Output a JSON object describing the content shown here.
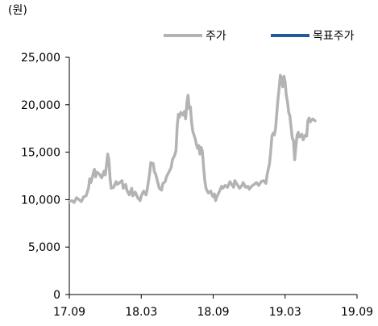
{
  "chart_data": {
    "type": "line",
    "unit_label": "(원)",
    "ylim": [
      0,
      25000
    ],
    "y_ticks": [
      0,
      5000,
      10000,
      15000,
      20000,
      25000
    ],
    "y_tick_labels": [
      "0",
      "5,000",
      "10,000",
      "15,000",
      "20,000",
      "25,000"
    ],
    "x_ticks": [
      "17.09",
      "18.03",
      "18.09",
      "19.03",
      "19.09"
    ],
    "legend_placement": "top-right",
    "grid": false,
    "series": [
      {
        "name": "주가",
        "color": "#b3b3b3",
        "x_unit": "months since 17.09",
        "points": [
          [
            0.0,
            9800
          ],
          [
            0.2,
            9900
          ],
          [
            0.4,
            9700
          ],
          [
            0.6,
            10200
          ],
          [
            0.8,
            10000
          ],
          [
            1.0,
            9800
          ],
          [
            1.2,
            10300
          ],
          [
            1.4,
            10400
          ],
          [
            1.6,
            11200
          ],
          [
            1.7,
            12200
          ],
          [
            1.8,
            11800
          ],
          [
            2.0,
            12800
          ],
          [
            2.1,
            13200
          ],
          [
            2.2,
            12400
          ],
          [
            2.3,
            12900
          ],
          [
            2.5,
            12700
          ],
          [
            2.7,
            12300
          ],
          [
            2.9,
            13000
          ],
          [
            3.0,
            12600
          ],
          [
            3.1,
            13600
          ],
          [
            3.2,
            14800
          ],
          [
            3.3,
            14200
          ],
          [
            3.4,
            12200
          ],
          [
            3.5,
            11200
          ],
          [
            3.7,
            11300
          ],
          [
            3.9,
            11900
          ],
          [
            4.0,
            11600
          ],
          [
            4.2,
            11800
          ],
          [
            4.4,
            12000
          ],
          [
            4.5,
            11200
          ],
          [
            4.7,
            11600
          ],
          [
            4.8,
            11000
          ],
          [
            5.0,
            10500
          ],
          [
            5.2,
            11200
          ],
          [
            5.3,
            10400
          ],
          [
            5.5,
            10800
          ],
          [
            5.7,
            10200
          ],
          [
            5.9,
            9900
          ],
          [
            6.0,
            10400
          ],
          [
            6.2,
            10900
          ],
          [
            6.4,
            10500
          ],
          [
            6.5,
            11100
          ],
          [
            6.7,
            12800
          ],
          [
            6.8,
            13900
          ],
          [
            7.0,
            13800
          ],
          [
            7.1,
            12900
          ],
          [
            7.2,
            12700
          ],
          [
            7.4,
            11700
          ],
          [
            7.5,
            11200
          ],
          [
            7.7,
            11000
          ],
          [
            7.8,
            11700
          ],
          [
            8.0,
            11900
          ],
          [
            8.1,
            12400
          ],
          [
            8.3,
            12900
          ],
          [
            8.5,
            13400
          ],
          [
            8.6,
            14200
          ],
          [
            8.8,
            14700
          ],
          [
            8.9,
            15200
          ],
          [
            9.0,
            17800
          ],
          [
            9.1,
            19000
          ],
          [
            9.2,
            18700
          ],
          [
            9.3,
            19200
          ],
          [
            9.5,
            18900
          ],
          [
            9.6,
            19300
          ],
          [
            9.7,
            18500
          ],
          [
            9.8,
            20100
          ],
          [
            9.9,
            21000
          ],
          [
            10.0,
            19600
          ],
          [
            10.1,
            19800
          ],
          [
            10.2,
            18200
          ],
          [
            10.3,
            17200
          ],
          [
            10.4,
            16800
          ],
          [
            10.5,
            16400
          ],
          [
            10.6,
            15800
          ],
          [
            10.7,
            15400
          ],
          [
            10.8,
            15700
          ],
          [
            10.9,
            14800
          ],
          [
            11.0,
            15500
          ],
          [
            11.1,
            15100
          ],
          [
            11.2,
            13400
          ],
          [
            11.3,
            12000
          ],
          [
            11.4,
            11200
          ],
          [
            11.5,
            10900
          ],
          [
            11.6,
            10700
          ],
          [
            11.8,
            10900
          ],
          [
            11.9,
            10500
          ],
          [
            12.0,
            10300
          ],
          [
            12.1,
            10600
          ],
          [
            12.2,
            9900
          ],
          [
            12.3,
            10300
          ],
          [
            12.5,
            10800
          ],
          [
            12.7,
            11400
          ],
          [
            12.8,
            11200
          ],
          [
            13.0,
            11500
          ],
          [
            13.2,
            11300
          ],
          [
            13.4,
            11900
          ],
          [
            13.5,
            11700
          ],
          [
            13.7,
            11300
          ],
          [
            13.8,
            12000
          ],
          [
            14.0,
            11600
          ],
          [
            14.2,
            11200
          ],
          [
            14.4,
            11500
          ],
          [
            14.5,
            11800
          ],
          [
            14.7,
            11300
          ],
          [
            14.9,
            11400
          ],
          [
            15.0,
            11100
          ],
          [
            15.2,
            11400
          ],
          [
            15.4,
            11600
          ],
          [
            15.6,
            11800
          ],
          [
            15.8,
            11500
          ],
          [
            16.0,
            11900
          ],
          [
            16.2,
            12000
          ],
          [
            16.4,
            11700
          ],
          [
            16.5,
            12600
          ],
          [
            16.7,
            13800
          ],
          [
            16.8,
            15100
          ],
          [
            16.9,
            16700
          ],
          [
            17.0,
            17000
          ],
          [
            17.1,
            16800
          ],
          [
            17.2,
            17500
          ],
          [
            17.3,
            19000
          ],
          [
            17.4,
            20500
          ],
          [
            17.5,
            21700
          ],
          [
            17.6,
            23100
          ],
          [
            17.7,
            22800
          ],
          [
            17.8,
            21900
          ],
          [
            17.9,
            23000
          ],
          [
            18.0,
            22400
          ],
          [
            18.1,
            21000
          ],
          [
            18.2,
            20300
          ],
          [
            18.3,
            19200
          ],
          [
            18.4,
            18800
          ],
          [
            18.5,
            17600
          ],
          [
            18.6,
            16500
          ],
          [
            18.7,
            16200
          ],
          [
            18.8,
            14200
          ],
          [
            18.9,
            15600
          ],
          [
            19.0,
            16800
          ],
          [
            19.1,
            17100
          ],
          [
            19.2,
            16600
          ],
          [
            19.3,
            16700
          ],
          [
            19.4,
            16900
          ],
          [
            19.5,
            16300
          ],
          [
            19.6,
            16600
          ],
          [
            19.7,
            16800
          ],
          [
            19.8,
            16700
          ],
          [
            19.9,
            18300
          ],
          [
            20.0,
            18600
          ],
          [
            20.1,
            18200
          ],
          [
            20.2,
            18400
          ],
          [
            20.3,
            18500
          ],
          [
            20.5,
            18300
          ]
        ]
      },
      {
        "name": "목표주가",
        "color": "#1f5c9e",
        "points": []
      }
    ]
  }
}
